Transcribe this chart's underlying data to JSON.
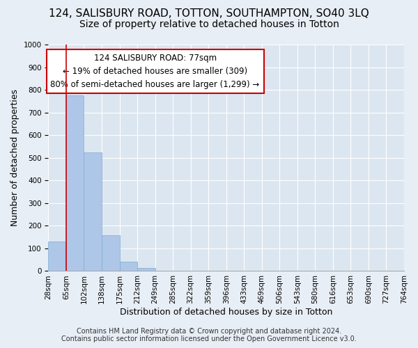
{
  "title": "124, SALISBURY ROAD, TOTTON, SOUTHAMPTON, SO40 3LQ",
  "subtitle": "Size of property relative to detached houses in Totton",
  "xlabel": "Distribution of detached houses by size in Totton",
  "ylabel": "Number of detached properties",
  "bar_values": [
    130,
    775,
    525,
    157,
    40,
    15,
    0,
    0,
    0,
    0,
    0,
    0,
    0,
    0,
    0,
    0,
    0,
    0,
    0,
    0
  ],
  "bar_labels": [
    "28sqm",
    "65sqm",
    "102sqm",
    "138sqm",
    "175sqm",
    "212sqm",
    "249sqm",
    "285sqm",
    "322sqm",
    "359sqm",
    "396sqm",
    "433sqm",
    "469sqm",
    "506sqm",
    "543sqm",
    "580sqm",
    "616sqm",
    "653sqm",
    "690sqm",
    "727sqm",
    "764sqm"
  ],
  "bar_color": "#aec6e8",
  "bar_edge_color": "#7aaed0",
  "vline_x": 1,
  "vline_color": "#cc0000",
  "annotation_line1": "124 SALISBURY ROAD: 77sqm",
  "annotation_line2": "← 19% of detached houses are smaller (309)",
  "annotation_line3": "80% of semi-detached houses are larger (1,299) →",
  "annotation_box_edge_color": "#cc0000",
  "annotation_box_facecolor": "white",
  "ylim": [
    0,
    1000
  ],
  "yticks": [
    0,
    100,
    200,
    300,
    400,
    500,
    600,
    700,
    800,
    900,
    1000
  ],
  "footer_line1": "Contains HM Land Registry data © Crown copyright and database right 2024.",
  "footer_line2": "Contains public sector information licensed under the Open Government Licence v3.0.",
  "bg_color": "#e8eef5",
  "plot_bg_color": "#dce6f0",
  "title_fontsize": 11,
  "subtitle_fontsize": 10,
  "axis_label_fontsize": 9,
  "tick_fontsize": 7.5,
  "footer_fontsize": 7
}
